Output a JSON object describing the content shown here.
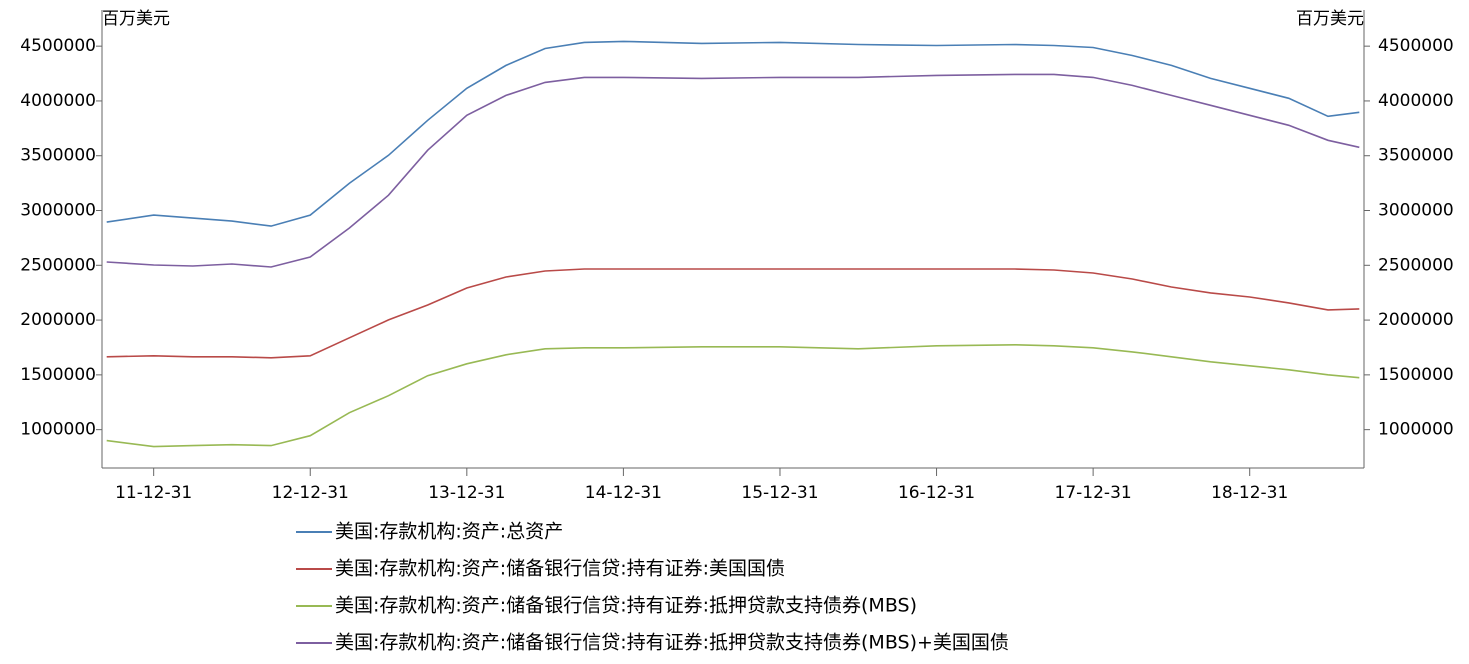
{
  "chart_data": {
    "type": "line",
    "ylabel": "百万美元",
    "y2label": "百万美元",
    "x": [
      2011.7,
      2012.0,
      2012.25,
      2012.5,
      2012.75,
      2013.0,
      2013.25,
      2013.5,
      2013.75,
      2014.0,
      2014.25,
      2014.5,
      2014.75,
      2015.0,
      2015.5,
      2016.0,
      2016.5,
      2017.0,
      2017.5,
      2017.75,
      2018.0,
      2018.25,
      2018.5,
      2018.75,
      2019.0,
      2019.25,
      2019.5,
      2019.7
    ],
    "xlim": [
      2011.67,
      2019.73
    ],
    "xticks": [
      {
        "value": 2012.0,
        "label": "11-12-31"
      },
      {
        "value": 2013.0,
        "label": "12-12-31"
      },
      {
        "value": 2014.0,
        "label": "13-12-31"
      },
      {
        "value": 2015.0,
        "label": "14-12-31"
      },
      {
        "value": 2016.0,
        "label": "15-12-31"
      },
      {
        "value": 2017.0,
        "label": "16-12-31"
      },
      {
        "value": 2018.0,
        "label": "17-12-31"
      },
      {
        "value": 2019.0,
        "label": "18-12-31"
      }
    ],
    "ylim": [
      650000,
      4830000
    ],
    "yticks": [
      1000000,
      1500000,
      2000000,
      2500000,
      3000000,
      3500000,
      4000000,
      4500000
    ],
    "y2lim": [
      650000,
      4830000
    ],
    "y2ticks": [
      1000000,
      1500000,
      2000000,
      2500000,
      3000000,
      3500000,
      4000000,
      4500000
    ],
    "series": [
      {
        "name": "美国:存款机构:资产:总资产",
        "color": "#4a7fb5",
        "values": [
          2894000,
          2958000,
          2931000,
          2903000,
          2858000,
          2958000,
          3249000,
          3504000,
          3823000,
          4115000,
          4324000,
          4479000,
          4534000,
          4543000,
          4525000,
          4534000,
          4515000,
          4506000,
          4515000,
          4506000,
          4488000,
          4415000,
          4324000,
          4206000,
          4115000,
          4024000,
          3860000,
          3896000
        ]
      },
      {
        "name": "美国:存款机构:资产:储备银行信贷:持有证券:美国国债",
        "color": "#b94a48",
        "values": [
          1665000,
          1674000,
          1665000,
          1665000,
          1656000,
          1674000,
          1838000,
          2002000,
          2138000,
          2293000,
          2393000,
          2448000,
          2466000,
          2466000,
          2466000,
          2466000,
          2466000,
          2466000,
          2466000,
          2457000,
          2430000,
          2375000,
          2302000,
          2248000,
          2211000,
          2157000,
          2093000,
          2102000
        ]
      },
      {
        "name": "美国:存款机构:资产:储备银行信贷:持有证券:抵押贷款支持债券(MBS)",
        "color": "#98b954",
        "values": [
          900000,
          845000,
          854000,
          863000,
          854000,
          945000,
          1155000,
          1310000,
          1492000,
          1601000,
          1683000,
          1738000,
          1747000,
          1747000,
          1756000,
          1756000,
          1738000,
          1765000,
          1774000,
          1765000,
          1747000,
          1710000,
          1665000,
          1619000,
          1583000,
          1546000,
          1501000,
          1474000
        ]
      },
      {
        "name": "美国:存款机构:资产:储备银行信贷:持有证券:抵押贷款支持债券(MBS)+美国国债",
        "color": "#7d5fa0",
        "values": [
          2530000,
          2503000,
          2494000,
          2512000,
          2484000,
          2576000,
          2840000,
          3140000,
          3550000,
          3869000,
          4051000,
          4169000,
          4215000,
          4215000,
          4206000,
          4215000,
          4215000,
          4233000,
          4242000,
          4242000,
          4215000,
          4142000,
          4051000,
          3960000,
          3869000,
          3778000,
          3641000,
          3577000
        ]
      }
    ]
  }
}
